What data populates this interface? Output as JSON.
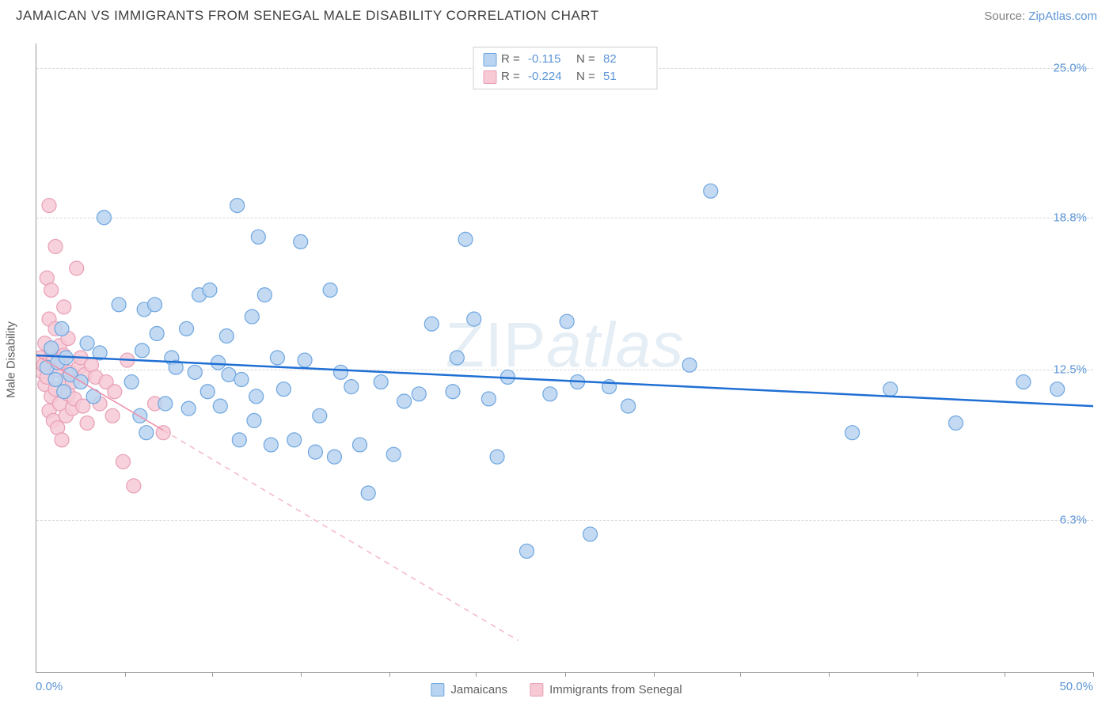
{
  "header": {
    "title": "JAMAICAN VS IMMIGRANTS FROM SENEGAL MALE DISABILITY CORRELATION CHART",
    "source_label": "Source: ",
    "source_link": "ZipAtlas.com"
  },
  "watermark": {
    "part1": "ZIP",
    "part2": "atlas"
  },
  "chart": {
    "type": "scatter",
    "background_color": "#ffffff",
    "grid_color": "#d8d8d8",
    "axis_color": "#999999",
    "tick_label_color": "#5c95d6",
    "ylabel": "Male Disability",
    "ylabel_fontsize": 15,
    "xlim": [
      0,
      50
    ],
    "ylim": [
      0,
      26
    ],
    "xticks_minor": [
      4.2,
      8.3,
      12.5,
      16.7,
      20.8,
      25.0,
      29.2,
      33.3,
      37.5,
      41.7,
      45.8,
      50.0
    ],
    "x_tick_labels": {
      "min": "0.0%",
      "max": "50.0%"
    },
    "yticks": [
      6.3,
      12.5,
      18.8,
      25.0
    ],
    "y_tick_labels": [
      "6.3%",
      "12.5%",
      "18.8%",
      "25.0%"
    ],
    "legend_top": [
      {
        "swatch": "blue",
        "R_label": "R =",
        "R": "-0.115",
        "N_label": "N =",
        "N": "82"
      },
      {
        "swatch": "pink",
        "R_label": "R =",
        "R": "-0.224",
        "N_label": "N =",
        "N": "51"
      }
    ],
    "legend_bottom": [
      {
        "swatch": "blue",
        "label": "Jamaicans"
      },
      {
        "swatch": "pink",
        "label": "Immigrants from Senegal"
      }
    ],
    "series": {
      "blue": {
        "marker_fill": "#b9d4f0",
        "marker_stroke": "#6ea6e0",
        "marker_opacity": 0.85,
        "marker_radius": 9,
        "trend_color": "#1f6fd4",
        "trend_width": 2.5,
        "trend": {
          "x1": 0,
          "y1": 13.1,
          "x2": 50,
          "y2": 11.0
        },
        "points": [
          [
            0.5,
            12.6
          ],
          [
            0.7,
            13.4
          ],
          [
            0.9,
            12.1
          ],
          [
            1.0,
            12.8
          ],
          [
            1.2,
            14.2
          ],
          [
            1.3,
            11.6
          ],
          [
            1.4,
            13.0
          ],
          [
            1.6,
            12.3
          ],
          [
            2.1,
            12.0
          ],
          [
            2.4,
            13.6
          ],
          [
            2.7,
            11.4
          ],
          [
            3.0,
            13.2
          ],
          [
            3.2,
            18.8
          ],
          [
            3.9,
            15.2
          ],
          [
            4.5,
            12.0
          ],
          [
            4.9,
            10.6
          ],
          [
            5.0,
            13.3
          ],
          [
            5.1,
            15.0
          ],
          [
            5.2,
            9.9
          ],
          [
            5.6,
            15.2
          ],
          [
            5.7,
            14.0
          ],
          [
            6.1,
            11.1
          ],
          [
            6.4,
            13.0
          ],
          [
            6.6,
            12.6
          ],
          [
            7.1,
            14.2
          ],
          [
            7.2,
            10.9
          ],
          [
            7.5,
            12.4
          ],
          [
            7.7,
            15.6
          ],
          [
            8.1,
            11.6
          ],
          [
            8.2,
            15.8
          ],
          [
            8.6,
            12.8
          ],
          [
            8.7,
            11.0
          ],
          [
            9.0,
            13.9
          ],
          [
            9.1,
            12.3
          ],
          [
            9.5,
            19.3
          ],
          [
            9.6,
            9.6
          ],
          [
            9.7,
            12.1
          ],
          [
            10.2,
            14.7
          ],
          [
            10.3,
            10.4
          ],
          [
            10.4,
            11.4
          ],
          [
            10.5,
            18.0
          ],
          [
            10.8,
            15.6
          ],
          [
            11.1,
            9.4
          ],
          [
            11.4,
            13.0
          ],
          [
            11.7,
            11.7
          ],
          [
            12.2,
            9.6
          ],
          [
            12.5,
            17.8
          ],
          [
            12.7,
            12.9
          ],
          [
            13.2,
            9.1
          ],
          [
            13.4,
            10.6
          ],
          [
            13.9,
            15.8
          ],
          [
            14.1,
            8.9
          ],
          [
            14.4,
            12.4
          ],
          [
            14.9,
            11.8
          ],
          [
            15.3,
            9.4
          ],
          [
            15.7,
            7.4
          ],
          [
            16.3,
            12.0
          ],
          [
            16.9,
            9.0
          ],
          [
            17.4,
            11.2
          ],
          [
            18.1,
            11.5
          ],
          [
            18.7,
            14.4
          ],
          [
            19.7,
            11.6
          ],
          [
            19.9,
            13.0
          ],
          [
            20.3,
            17.9
          ],
          [
            20.7,
            14.6
          ],
          [
            21.4,
            11.3
          ],
          [
            21.8,
            8.9
          ],
          [
            22.3,
            12.2
          ],
          [
            23.2,
            5.0
          ],
          [
            24.3,
            11.5
          ],
          [
            25.1,
            14.5
          ],
          [
            25.6,
            12.0
          ],
          [
            26.2,
            5.7
          ],
          [
            27.1,
            11.8
          ],
          [
            28.0,
            11.0
          ],
          [
            30.9,
            12.7
          ],
          [
            31.9,
            19.9
          ],
          [
            38.6,
            9.9
          ],
          [
            40.4,
            11.7
          ],
          [
            43.5,
            10.3
          ],
          [
            46.7,
            12.0
          ],
          [
            48.3,
            11.7
          ]
        ]
      },
      "pink": {
        "marker_fill": "#f6c9d5",
        "marker_stroke": "#e89fb5",
        "marker_opacity": 0.85,
        "marker_radius": 9,
        "trend_solid_color": "#ec93ab",
        "trend_dash_color": "#f5bccb",
        "trend_width": 1.6,
        "trend_solid": {
          "x1": 0,
          "y1": 13.1,
          "x2": 6.0,
          "y2": 10.0
        },
        "trend_dash": {
          "x1": 6.0,
          "y1": 10.0,
          "x2": 22.8,
          "y2": 1.3
        },
        "points": [
          [
            0.2,
            13.0
          ],
          [
            0.3,
            12.4
          ],
          [
            0.35,
            12.7
          ],
          [
            0.4,
            11.9
          ],
          [
            0.4,
            13.6
          ],
          [
            0.5,
            16.3
          ],
          [
            0.5,
            12.2
          ],
          [
            0.6,
            10.8
          ],
          [
            0.6,
            14.6
          ],
          [
            0.6,
            19.3
          ],
          [
            0.7,
            11.4
          ],
          [
            0.7,
            13.3
          ],
          [
            0.7,
            15.8
          ],
          [
            0.8,
            10.4
          ],
          [
            0.8,
            12.9
          ],
          [
            0.9,
            11.7
          ],
          [
            0.9,
            14.2
          ],
          [
            0.9,
            17.6
          ],
          [
            1.0,
            10.1
          ],
          [
            1.0,
            12.5
          ],
          [
            1.1,
            13.5
          ],
          [
            1.1,
            11.1
          ],
          [
            1.2,
            12.8
          ],
          [
            1.2,
            9.6
          ],
          [
            1.3,
            13.1
          ],
          [
            1.3,
            15.1
          ],
          [
            1.4,
            12.1
          ],
          [
            1.4,
            10.6
          ],
          [
            1.5,
            11.5
          ],
          [
            1.5,
            13.8
          ],
          [
            1.6,
            12.4
          ],
          [
            1.7,
            10.9
          ],
          [
            1.7,
            12.0
          ],
          [
            1.8,
            11.3
          ],
          [
            1.9,
            16.7
          ],
          [
            2.0,
            12.6
          ],
          [
            2.1,
            13.0
          ],
          [
            2.2,
            11.0
          ],
          [
            2.3,
            12.3
          ],
          [
            2.4,
            10.3
          ],
          [
            2.6,
            12.7
          ],
          [
            2.8,
            12.2
          ],
          [
            3.0,
            11.1
          ],
          [
            3.3,
            12.0
          ],
          [
            3.6,
            10.6
          ],
          [
            3.7,
            11.6
          ],
          [
            4.1,
            8.7
          ],
          [
            4.3,
            12.9
          ],
          [
            4.6,
            7.7
          ],
          [
            5.6,
            11.1
          ],
          [
            6.0,
            9.9
          ]
        ]
      }
    }
  }
}
